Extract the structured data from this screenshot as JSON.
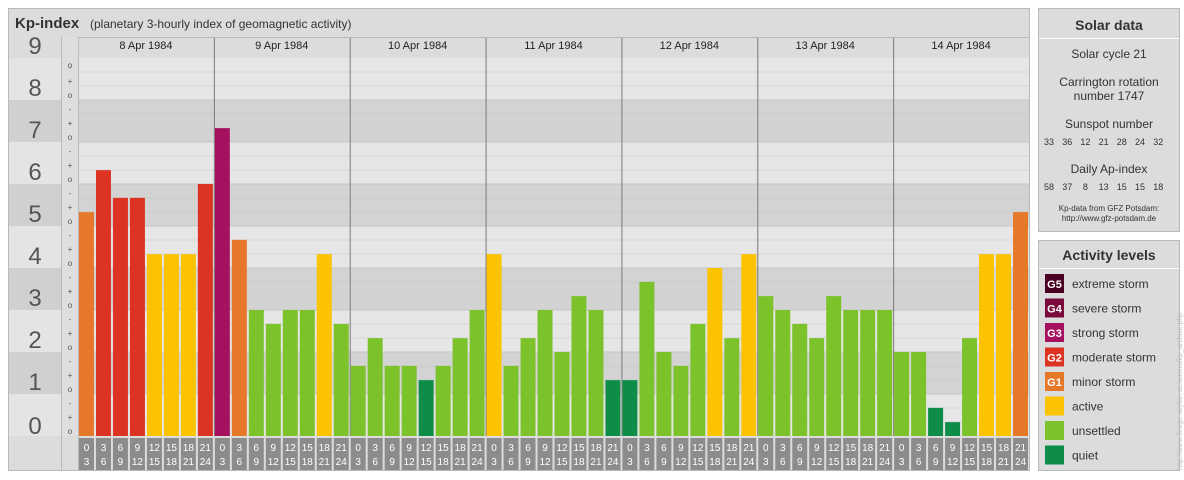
{
  "header": {
    "title": "Kp-index",
    "subtitle": "(planetary 3-hourly index of geomagnetic activity)"
  },
  "chart_data": {
    "type": "bar",
    "title": "Kp-index",
    "subtitle": "(planetary 3-hourly index of geomagnetic activity)",
    "ylim": [
      0,
      9
    ],
    "y_ticks": [
      "0",
      "1",
      "2",
      "3",
      "4",
      "5",
      "6",
      "7",
      "8",
      "9"
    ],
    "minor_tick_labels": [
      "o",
      "+",
      "-"
    ],
    "days": [
      "8 Apr 1984",
      "9 Apr 1984",
      "10 Apr 1984",
      "11 Apr 1984",
      "12 Apr 1984",
      "13 Apr 1984",
      "14 Apr 1984"
    ],
    "interval_starts": [
      "0",
      "3",
      "6",
      "9",
      "12",
      "15",
      "18",
      "21"
    ],
    "interval_ends": [
      "3",
      "6",
      "9",
      "12",
      "15",
      "18",
      "21",
      "24"
    ],
    "values": [
      5.33,
      6.33,
      5.67,
      5.67,
      4.33,
      4.33,
      4.33,
      6.0,
      7.33,
      4.67,
      3.0,
      2.67,
      3.0,
      3.0,
      4.33,
      2.67,
      1.67,
      2.33,
      1.67,
      1.67,
      1.33,
      1.67,
      2.33,
      3.0,
      4.33,
      1.67,
      2.33,
      3.0,
      2.0,
      3.33,
      3.0,
      1.33,
      1.33,
      3.67,
      2.0,
      1.67,
      2.67,
      4.0,
      2.33,
      4.33,
      3.33,
      3.0,
      2.67,
      2.33,
      3.33,
      3.0,
      3.0,
      3.0,
      2.0,
      2.0,
      0.67,
      0.33,
      2.33,
      4.33,
      4.33,
      5.33
    ],
    "grid": true
  },
  "solar": {
    "title": "Solar data",
    "cycle": "Solar cycle 21",
    "carrington": "Carrington rotation number 1747",
    "sunspot_label": "Sunspot number",
    "sunspots": [
      "33",
      "36",
      "12",
      "21",
      "28",
      "24",
      "32"
    ],
    "ap_label": "Daily Ap-index",
    "ap": [
      "58",
      "37",
      "8",
      "13",
      "15",
      "15",
      "18"
    ],
    "source_line1": "Kp-data from GFZ Potsdam:",
    "source_line2": "http://www.gfz-potsdam.de"
  },
  "legend": {
    "title": "Activity levels",
    "items": [
      {
        "badge": "G5",
        "label": "extreme storm",
        "color": "#4a0022"
      },
      {
        "badge": "G4",
        "label": "severe storm",
        "color": "#7a0a3a"
      },
      {
        "badge": "G3",
        "label": "strong storm",
        "color": "#a5115f"
      },
      {
        "badge": "G2",
        "label": "moderate storm",
        "color": "#dc3323"
      },
      {
        "badge": "G1",
        "label": "minor storm",
        "color": "#e6782a"
      },
      {
        "badge": "",
        "label": "active",
        "color": "#fcc300"
      },
      {
        "badge": "",
        "label": "unsettled",
        "color": "#7cc22a"
      },
      {
        "badge": "",
        "label": "quiet",
        "color": "#0e8d49"
      }
    ]
  },
  "watermark": "http://www.fleuge-skyfan.de/aurora/kp_archive.php"
}
